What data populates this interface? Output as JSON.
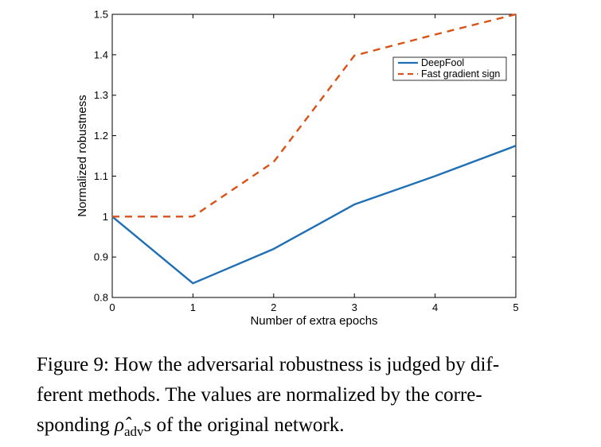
{
  "chart_data": {
    "type": "line",
    "x": [
      0,
      1,
      2,
      3,
      4,
      5
    ],
    "xlim": [
      0,
      5
    ],
    "ylim": [
      0.8,
      1.5
    ],
    "xticks": [
      "0",
      "1",
      "2",
      "3",
      "4",
      "5"
    ],
    "yticks": [
      "0.8",
      "0.9",
      "1",
      "1.1",
      "1.2",
      "1.3",
      "1.4",
      "1.5"
    ],
    "xlabel": "Number of extra epochs",
    "ylabel": "Normalized robustness",
    "grid": false,
    "legend_position": "top-right",
    "series": [
      {
        "name": "DeepFool",
        "values": [
          1.0,
          0.835,
          0.92,
          1.03,
          1.1,
          1.175
        ],
        "color": "#1f6fb4",
        "style": "solid"
      },
      {
        "name": "Fast gradient sign",
        "values": [
          1.0,
          1.0,
          1.135,
          1.398,
          1.45,
          1.5
        ],
        "color": "#d95319",
        "style": "dashed"
      }
    ]
  },
  "caption": {
    "line1": "Figure 9: How the adversarial robustness is judged by dif-",
    "line2": "ferent methods.  The values are normalized by the corre-",
    "line3_prefix": "sponding ",
    "line3_symbol": "ρ̂",
    "line3_sub": "adv",
    "line3_suffix": "s of the original network."
  }
}
